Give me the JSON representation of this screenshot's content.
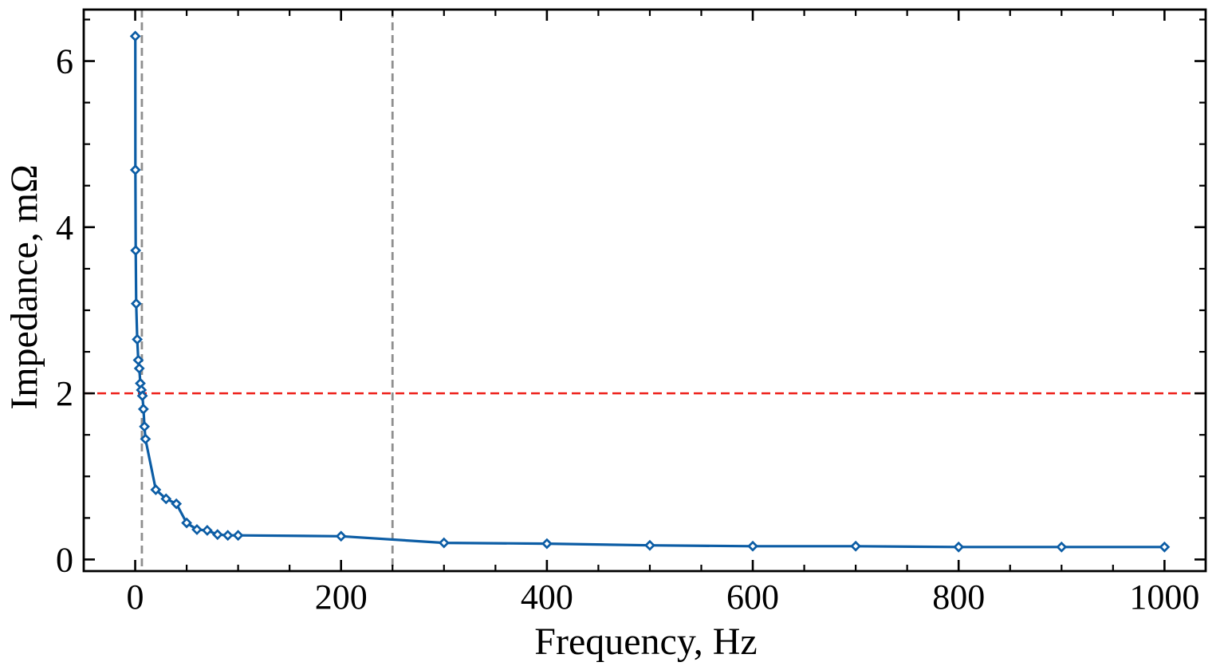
{
  "chart_data": {
    "type": "line",
    "title": "",
    "xlabel": "Frequency, Hz",
    "ylabel": "Impedance, mΩ",
    "x": [
      0.1,
      0.2,
      0.5,
      1,
      2,
      3,
      4,
      5,
      6,
      7,
      8,
      9,
      10,
      20,
      30,
      40,
      50,
      60,
      70,
      80,
      90,
      100,
      200,
      300,
      400,
      500,
      600,
      700,
      800,
      900,
      1000
    ],
    "y": [
      6.3,
      4.69,
      3.72,
      3.08,
      2.65,
      2.4,
      2.3,
      2.12,
      2.04,
      1.97,
      1.81,
      1.6,
      1.45,
      0.84,
      0.73,
      0.67,
      0.44,
      0.36,
      0.35,
      0.3,
      0.29,
      0.29,
      0.28,
      0.2,
      0.19,
      0.17,
      0.16,
      0.16,
      0.15,
      0.15,
      0.15
    ],
    "series": [
      {
        "name": "Impedance",
        "marker": "diamond",
        "line_style": "solid"
      }
    ],
    "xlim": [
      -50,
      1040
    ],
    "ylim": [
      -0.14,
      6.62
    ],
    "x_major_ticks": [
      0,
      200,
      400,
      600,
      800,
      1000
    ],
    "x_major_tick_labels": [
      "0",
      "200",
      "400",
      "600",
      "800",
      "1000"
    ],
    "x_minor_ticks": [
      50,
      100,
      150,
      250,
      300,
      350,
      450,
      500,
      550,
      650,
      700,
      750,
      850,
      900,
      950
    ],
    "y_major_ticks": [
      0,
      2,
      4,
      6
    ],
    "y_major_tick_labels": [
      "0",
      "2",
      "4",
      "6"
    ],
    "y_minor_ticks": [
      0.5,
      1,
      1.5,
      2.5,
      3,
      3.5,
      4.5,
      5,
      5.5,
      6.5
    ],
    "grid": false,
    "legend": "none",
    "annotations": {
      "red_dashed_hline_y": 2.0,
      "gray_dashed_vlines_x": [
        6.5,
        250
      ]
    },
    "colors": {
      "line": "#0C5DA5",
      "marker_face": "#ffffff",
      "threshold_line": "#ED1C16",
      "guide_line": "#8F8F8F",
      "axis": "#000000",
      "background": "#ffffff"
    }
  }
}
